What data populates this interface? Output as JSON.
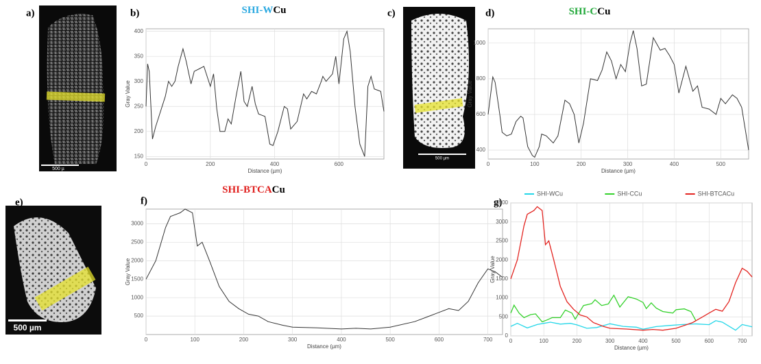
{
  "figure": {
    "panel_labels": [
      "a)",
      "b)",
      "c)",
      "d)",
      "e)",
      "f)",
      "g)"
    ],
    "scale_bars": [
      "500 µ",
      "500 µm",
      "500 µm"
    ]
  },
  "chart_data": [
    {
      "type": "line",
      "title": [
        {
          "text": "SHI-W",
          "color": "#29a8e0"
        },
        {
          "text": "Cu",
          "color": "#000000"
        }
      ],
      "x_label": "Distance (µm)",
      "y_label": "Gray Value",
      "color": "#333333",
      "grid": true,
      "xlim": [
        0,
        740
      ],
      "xticks": [
        0,
        200,
        400,
        600
      ],
      "ylim": [
        145,
        405
      ],
      "yticks": [
        150,
        200,
        250,
        300,
        350,
        400
      ],
      "x": [
        0,
        5,
        10,
        20,
        30,
        40,
        60,
        70,
        80,
        90,
        100,
        115,
        125,
        140,
        150,
        165,
        180,
        190,
        200,
        210,
        220,
        230,
        245,
        255,
        265,
        280,
        295,
        305,
        315,
        330,
        340,
        350,
        370,
        385,
        395,
        410,
        430,
        440,
        450,
        470,
        490,
        500,
        515,
        530,
        545,
        550,
        560,
        580,
        590,
        600,
        615,
        625,
        635,
        650,
        665,
        680,
        690,
        700,
        710,
        730,
        740
      ],
      "values": [
        250,
        335,
        320,
        185,
        210,
        230,
        270,
        300,
        290,
        300,
        330,
        365,
        340,
        295,
        320,
        325,
        330,
        310,
        290,
        315,
        245,
        200,
        200,
        225,
        215,
        270,
        320,
        260,
        250,
        290,
        255,
        235,
        230,
        175,
        172,
        200,
        250,
        245,
        205,
        220,
        275,
        265,
        280,
        275,
        300,
        310,
        300,
        315,
        350,
        295,
        385,
        400,
        360,
        250,
        175,
        150,
        290,
        310,
        285,
        280,
        240
      ]
    },
    {
      "type": "line",
      "title": [
        {
          "text": "SHI-C",
          "color": "#22a83a"
        },
        {
          "text": "Cu",
          "color": "#000000"
        }
      ],
      "x_label": "Distance (µm)",
      "y_label": "Gray Value",
      "color": "#333333",
      "grid": true,
      "xlim": [
        0,
        560
      ],
      "xticks": [
        0,
        100,
        200,
        300,
        400,
        500
      ],
      "ylim": [
        350,
        1080
      ],
      "yticks": [
        400,
        600,
        800,
        1000
      ],
      "x": [
        0,
        10,
        15,
        25,
        30,
        40,
        50,
        60,
        70,
        75,
        85,
        95,
        100,
        110,
        115,
        125,
        140,
        150,
        165,
        175,
        185,
        195,
        205,
        220,
        235,
        245,
        255,
        265,
        275,
        285,
        295,
        305,
        312,
        320,
        330,
        340,
        355,
        370,
        380,
        390,
        400,
        410,
        425,
        440,
        450,
        460,
        475,
        490,
        500,
        510,
        525,
        535,
        545,
        560
      ],
      "values": [
        600,
        810,
        780,
        600,
        500,
        480,
        490,
        560,
        590,
        580,
        420,
        370,
        360,
        420,
        490,
        480,
        440,
        480,
        680,
        660,
        600,
        440,
        550,
        800,
        790,
        850,
        950,
        900,
        800,
        880,
        840,
        1000,
        1070,
        970,
        760,
        770,
        1030,
        960,
        970,
        930,
        880,
        720,
        870,
        730,
        760,
        640,
        630,
        600,
        690,
        660,
        710,
        690,
        640,
        400
      ]
    },
    {
      "type": "line",
      "title": [
        {
          "text": "SHI-BTCA",
          "color": "#e0201e"
        },
        {
          "text": "Cu",
          "color": "#000000"
        }
      ],
      "x_label": "Distance (µm)",
      "y_label": "Gray Value",
      "color": "#333333",
      "grid": true,
      "xlim": [
        0,
        730
      ],
      "xticks": [
        0,
        100,
        200,
        300,
        400,
        500,
        600,
        700
      ],
      "ylim": [
        0,
        3400
      ],
      "yticks": [
        500,
        1000,
        1500,
        2000,
        2500,
        3000
      ],
      "x": [
        0,
        20,
        40,
        50,
        70,
        80,
        95,
        105,
        115,
        130,
        150,
        170,
        190,
        210,
        230,
        250,
        280,
        300,
        350,
        400,
        430,
        460,
        500,
        550,
        580,
        600,
        620,
        640,
        660,
        680,
        700,
        715,
        730
      ],
      "values": [
        1500,
        2000,
        2900,
        3200,
        3300,
        3400,
        3300,
        2400,
        2500,
        2000,
        1300,
        900,
        700,
        550,
        500,
        350,
        250,
        200,
        180,
        150,
        170,
        150,
        200,
        350,
        500,
        600,
        700,
        650,
        900,
        1400,
        1780,
        1700,
        1550
      ]
    },
    {
      "type": "line",
      "x_label": "Distance (µm)",
      "y_label": "Gray Value",
      "grid": true,
      "legend": "top",
      "xlim": [
        0,
        730
      ],
      "xticks": [
        0,
        100,
        200,
        300,
        400,
        500,
        600,
        700
      ],
      "ylim": [
        0,
        3500
      ],
      "yticks": [
        0,
        500,
        1000,
        1500,
        2000,
        2500,
        3000,
        3500
      ],
      "series": [
        {
          "name": "SHI-WCu",
          "color": "#22d6e8",
          "x": [
            0,
            20,
            50,
            80,
            100,
            120,
            150,
            180,
            200,
            230,
            260,
            300,
            340,
            380,
            400,
            440,
            480,
            520,
            560,
            600,
            620,
            640,
            680,
            700,
            730
          ],
          "values": [
            250,
            330,
            210,
            300,
            330,
            360,
            310,
            330,
            290,
            200,
            220,
            320,
            250,
            230,
            175,
            245,
            275,
            300,
            315,
            295,
            400,
            360,
            150,
            300,
            240
          ]
        },
        {
          "name": "SHI-CCu",
          "color": "#33d12a",
          "x": [
            0,
            10,
            25,
            40,
            60,
            75,
            95,
            110,
            125,
            150,
            165,
            185,
            195,
            220,
            245,
            255,
            275,
            295,
            312,
            330,
            355,
            380,
            400,
            410,
            425,
            440,
            460,
            490,
            500,
            525,
            545,
            560
          ],
          "values": [
            600,
            810,
            600,
            480,
            560,
            580,
            370,
            420,
            480,
            480,
            680,
            600,
            440,
            800,
            850,
            950,
            800,
            840,
            1070,
            760,
            1030,
            970,
            880,
            720,
            870,
            730,
            640,
            600,
            690,
            710,
            640,
            400
          ]
        },
        {
          "name": "SHI-BTCACu",
          "color": "#e3231f",
          "x": [
            0,
            20,
            40,
            50,
            70,
            80,
            95,
            105,
            115,
            130,
            150,
            170,
            190,
            210,
            230,
            250,
            280,
            300,
            350,
            400,
            430,
            460,
            500,
            550,
            580,
            600,
            620,
            640,
            660,
            680,
            700,
            715,
            730
          ],
          "values": [
            1500,
            2000,
            2900,
            3200,
            3300,
            3400,
            3300,
            2400,
            2500,
            2000,
            1300,
            900,
            700,
            550,
            500,
            350,
            250,
            200,
            180,
            150,
            170,
            150,
            200,
            350,
            500,
            600,
            700,
            650,
            900,
            1400,
            1780,
            1700,
            1550
          ]
        }
      ]
    }
  ]
}
